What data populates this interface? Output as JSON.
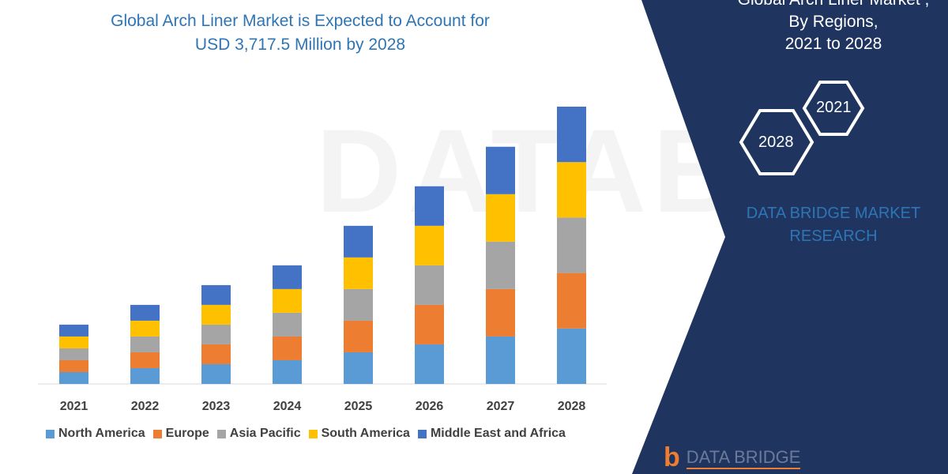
{
  "title_line1": "Global Arch Liner Market is Expected to Account for",
  "title_line2": "USD 3,717.5 Million by 2028",
  "side_panel": {
    "line1": "Global Arch Liner Market ,",
    "line2": "By Regions,",
    "line3": "2021 to 2028",
    "hex_a": "2021",
    "hex_b": "2028",
    "brand_line1": "DATA BRIDGE MARKET",
    "brand_line2": "RESEARCH",
    "logo_text": "DATA BRIDGE"
  },
  "colors": {
    "navy": "#1F3560",
    "accent": "#2E75B6"
  },
  "chart_data": {
    "type": "bar",
    "stacked": true,
    "title": "",
    "xlabel": "",
    "ylabel": "",
    "categories": [
      "2021",
      "2022",
      "2023",
      "2024",
      "2025",
      "2026",
      "2027",
      "2028"
    ],
    "legend_position": "bottom",
    "grid": false,
    "series": [
      {
        "name": "North America",
        "color": "#5B9BD5",
        "values": [
          159,
          212,
          265,
          318,
          424,
          530,
          636,
          743.5
        ]
      },
      {
        "name": "Europe",
        "color": "#ED7D31",
        "values": [
          159,
          212,
          265,
          318,
          424,
          530,
          636,
          743.5
        ]
      },
      {
        "name": "Asia Pacific",
        "color": "#A5A5A5",
        "values": [
          159,
          212,
          265,
          318,
          424,
          530,
          636,
          743.5
        ]
      },
      {
        "name": "South America",
        "color": "#FFC000",
        "values": [
          159,
          212,
          265,
          318,
          424,
          530,
          636,
          743.5
        ]
      },
      {
        "name": "Middle East and Africa",
        "color": "#4472C4",
        "values": [
          159,
          212,
          265,
          318,
          424,
          530,
          636,
          743.5
        ]
      }
    ]
  }
}
